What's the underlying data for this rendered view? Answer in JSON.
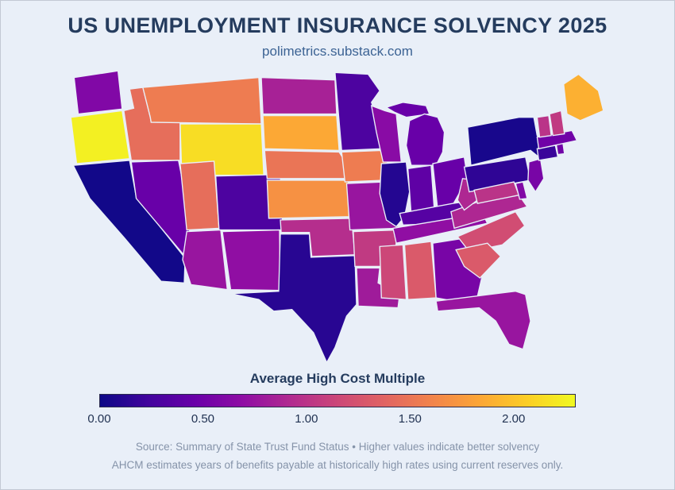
{
  "colors": {
    "background": "#e9eff8",
    "title": "#253c5e",
    "subtitle": "#3c6394",
    "caption": "#8593a9",
    "state_border": "#e9eff8",
    "colorbar_border": "#2b2b4e"
  },
  "footer": {
    "source_line": "Source: Summary of State Trust Fund Status • Higher values indicate better solvency",
    "note_line": "AHCM estimates years of benefits payable at historically high rates using current reserves only."
  },
  "chart_data": {
    "type": "choropleth",
    "title": "US UNEMPLOYMENT INSURANCE SOLVENCY 2025",
    "subtitle": "polimetrics.substack.com",
    "legend_label": "Average High Cost Multiple",
    "colormap": {
      "domain": [
        0,
        2.3
      ],
      "stops": [
        "#0d0887",
        "#41049d",
        "#6a00a8",
        "#8f0da4",
        "#b12a90",
        "#cc4778",
        "#e16462",
        "#f2844b",
        "#fca636",
        "#fcce25",
        "#f0f921"
      ]
    },
    "colorbar_ticks": [
      {
        "value": 0.0,
        "label": "0.00"
      },
      {
        "value": 0.5,
        "label": "0.50"
      },
      {
        "value": 1.0,
        "label": "1.00"
      },
      {
        "value": 1.5,
        "label": "1.50"
      },
      {
        "value": 2.0,
        "label": "2.00"
      }
    ],
    "states": [
      {
        "abbr": "WA",
        "name": "Washington",
        "value": 0.6
      },
      {
        "abbr": "OR",
        "name": "Oregon",
        "value": 2.25
      },
      {
        "abbr": "CA",
        "name": "California",
        "value": 0.02
      },
      {
        "abbr": "ID",
        "name": "Idaho",
        "value": 1.45
      },
      {
        "abbr": "NV",
        "name": "Nevada",
        "value": 0.45
      },
      {
        "abbr": "MT",
        "name": "Montana",
        "value": 1.55
      },
      {
        "abbr": "WY",
        "name": "Wyoming",
        "value": 2.15
      },
      {
        "abbr": "UT",
        "name": "Utah",
        "value": 1.45
      },
      {
        "abbr": "CO",
        "name": "Colorado",
        "value": 0.3
      },
      {
        "abbr": "AZ",
        "name": "Arizona",
        "value": 0.75
      },
      {
        "abbr": "NM",
        "name": "New Mexico",
        "value": 0.7
      },
      {
        "abbr": "ND",
        "name": "North Dakota",
        "value": 0.85
      },
      {
        "abbr": "SD",
        "name": "South Dakota",
        "value": 1.85
      },
      {
        "abbr": "NE",
        "name": "Nebraska",
        "value": 1.5
      },
      {
        "abbr": "KS",
        "name": "Kansas",
        "value": 1.7
      },
      {
        "abbr": "OK",
        "name": "Oklahoma",
        "value": 0.95
      },
      {
        "abbr": "TX",
        "name": "Texas",
        "value": 0.12
      },
      {
        "abbr": "MN",
        "name": "Minnesota",
        "value": 0.3
      },
      {
        "abbr": "IA",
        "name": "Iowa",
        "value": 1.55
      },
      {
        "abbr": "MO",
        "name": "Missouri",
        "value": 0.75
      },
      {
        "abbr": "AR",
        "name": "Arkansas",
        "value": 1.05
      },
      {
        "abbr": "LA",
        "name": "Louisiana",
        "value": 0.8
      },
      {
        "abbr": "WI",
        "name": "Wisconsin",
        "value": 0.65
      },
      {
        "abbr": "IL",
        "name": "Illinois",
        "value": 0.1
      },
      {
        "abbr": "MI",
        "name": "Michigan",
        "value": 0.45
      },
      {
        "abbr": "IN",
        "name": "Indiana",
        "value": 0.4
      },
      {
        "abbr": "OH",
        "name": "Ohio",
        "value": 0.45
      },
      {
        "abbr": "KY",
        "name": "Kentucky",
        "value": 0.35
      },
      {
        "abbr": "TN",
        "name": "Tennessee",
        "value": 0.7
      },
      {
        "abbr": "MS",
        "name": "Mississippi",
        "value": 1.15
      },
      {
        "abbr": "AL",
        "name": "Alabama",
        "value": 1.3
      },
      {
        "abbr": "GA",
        "name": "Georgia",
        "value": 0.55
      },
      {
        "abbr": "FL",
        "name": "Florida",
        "value": 0.75
      },
      {
        "abbr": "SC",
        "name": "South Carolina",
        "value": 1.3
      },
      {
        "abbr": "NC",
        "name": "North Carolina",
        "value": 1.2
      },
      {
        "abbr": "VA",
        "name": "Virginia",
        "value": 0.9
      },
      {
        "abbr": "WV",
        "name": "West Virginia",
        "value": 0.9
      },
      {
        "abbr": "MD",
        "name": "Maryland",
        "value": 1.0
      },
      {
        "abbr": "DE",
        "name": "Delaware",
        "value": 0.6
      },
      {
        "abbr": "PA",
        "name": "Pennsylvania",
        "value": 0.15
      },
      {
        "abbr": "NY",
        "name": "New York",
        "value": 0.05
      },
      {
        "abbr": "NJ",
        "name": "New Jersey",
        "value": 0.55
      },
      {
        "abbr": "CT",
        "name": "Connecticut",
        "value": 0.2
      },
      {
        "abbr": "RI",
        "name": "Rhode Island",
        "value": 0.5
      },
      {
        "abbr": "MA",
        "name": "Massachusetts",
        "value": 0.5
      },
      {
        "abbr": "VT",
        "name": "Vermont",
        "value": 1.0
      },
      {
        "abbr": "NH",
        "name": "New Hampshire",
        "value": 1.05
      },
      {
        "abbr": "ME",
        "name": "Maine",
        "value": 1.9
      }
    ]
  }
}
